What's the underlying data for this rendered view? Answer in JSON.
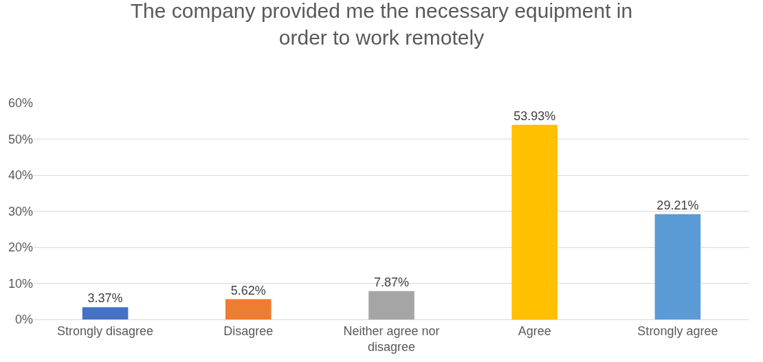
{
  "chart_data": {
    "type": "bar",
    "title": "The company provided me the necessary equipment in order to work remotely",
    "categories": [
      "Strongly disagree",
      "Disagree",
      "Neither agree nor disagree",
      "Agree",
      "Strongly agree"
    ],
    "values": [
      3.37,
      5.62,
      7.87,
      53.93,
      29.21
    ],
    "colors": [
      "#4472c4",
      "#ed7d31",
      "#a5a5a5",
      "#ffc000",
      "#5b9bd5"
    ],
    "value_labels": [
      "3.37%",
      "5.62%",
      "7.87%",
      "53.93%",
      "29.21%"
    ],
    "ylim": [
      0,
      60
    ],
    "yticks": [
      {
        "value": 0,
        "label": "0%"
      },
      {
        "value": 10,
        "label": "10%"
      },
      {
        "value": 20,
        "label": "20%"
      },
      {
        "value": 30,
        "label": "30%"
      },
      {
        "value": 40,
        "label": "40%"
      },
      {
        "value": 50,
        "label": "50%"
      },
      {
        "value": 60,
        "label": "60%"
      }
    ],
    "grid": "y"
  }
}
